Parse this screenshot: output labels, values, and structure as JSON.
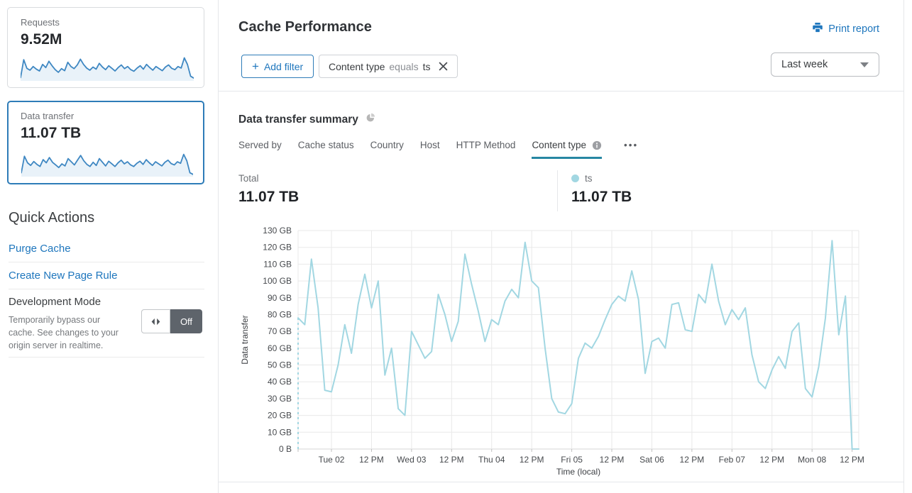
{
  "sidebar": {
    "requests_card": {
      "label": "Requests",
      "value": "9.52M",
      "sparkline": [
        10,
        78,
        45,
        38,
        52,
        42,
        35,
        60,
        48,
        72,
        55,
        40,
        30,
        44,
        36,
        68,
        52,
        44,
        58,
        80,
        60,
        46,
        38,
        50,
        42,
        64,
        50,
        40,
        55,
        45,
        35,
        48,
        58,
        44,
        52,
        40,
        34,
        46,
        55,
        42,
        60,
        48,
        38,
        52,
        44,
        36,
        50,
        58,
        45,
        40,
        52,
        46,
        85,
        60,
        15,
        8
      ]
    },
    "data_transfer_card": {
      "label": "Data transfer",
      "value": "11.07 TB",
      "sparkline": [
        12,
        75,
        50,
        40,
        55,
        44,
        36,
        62,
        50,
        70,
        52,
        42,
        32,
        46,
        38,
        66,
        54,
        42,
        60,
        78,
        58,
        44,
        36,
        52,
        40,
        66,
        52,
        38,
        56,
        46,
        36,
        50,
        60,
        46,
        54,
        42,
        36,
        48,
        56,
        44,
        62,
        50,
        40,
        54,
        46,
        38,
        52,
        60,
        47,
        42,
        54,
        48,
        82,
        58,
        12,
        6
      ]
    },
    "quick_actions": {
      "title": "Quick Actions",
      "links": [
        "Purge Cache",
        "Create New Page Rule"
      ],
      "dev_mode": {
        "label": "Development Mode",
        "description": "Temporarily bypass our cache. See changes to your origin server in realtime.",
        "toggle_state": "Off"
      }
    }
  },
  "header": {
    "title": "Cache Performance",
    "print_label": "Print report",
    "add_filter_plus": "+",
    "add_filter_label": "Add filter",
    "filter_chip": {
      "field": "Content type",
      "operator": "equals",
      "value": "ts"
    },
    "time_range": "Last week"
  },
  "summary": {
    "title": "Data transfer summary",
    "tabs": [
      {
        "label": "Served by"
      },
      {
        "label": "Cache status"
      },
      {
        "label": "Country"
      },
      {
        "label": "Host"
      },
      {
        "label": "HTTP Method"
      },
      {
        "label": "Content type",
        "active": true,
        "has_info": true
      }
    ],
    "more_label": "•••",
    "total_label": "Total",
    "total_value": "11.07 TB",
    "legend": {
      "name": "ts",
      "value": "11.07 TB",
      "color": "#a2d7e2"
    }
  },
  "colors": {
    "accent_blue": "#1e76bd",
    "selected_card_border": "#2e7cb8",
    "tab_underline": "#2787a3",
    "series_light_blue": "#a2d7e2",
    "sparkline_blue": "#3e87c2",
    "sparkline_fill": "#e9f2f9",
    "toggle_dark": "#5e646b",
    "gridline": "#e9e9e9"
  },
  "chart_data": {
    "type": "line",
    "title": "Data transfer summary",
    "xlabel": "Time (local)",
    "ylabel": "Data transfer",
    "unit": "GB",
    "ylim": [
      0,
      130
    ],
    "grid": true,
    "legend_position": "top-right",
    "dashed_lead_in": true,
    "y_ticks": [
      "0 B",
      "10 GB",
      "20 GB",
      "30 GB",
      "40 GB",
      "50 GB",
      "60 GB",
      "70 GB",
      "80 GB",
      "90 GB",
      "100 GB",
      "110 GB",
      "120 GB",
      "130 GB"
    ],
    "x_ticks": {
      "labels": [
        "Tue 02",
        "12 PM",
        "Wed 03",
        "12 PM",
        "Thu 04",
        "12 PM",
        "Fri 05",
        "12 PM",
        "Sat 06",
        "12 PM",
        "Feb 07",
        "12 PM",
        "Mon 08",
        "12 PM"
      ],
      "point_indices": [
        5,
        11,
        17,
        23,
        29,
        35,
        41,
        47,
        53,
        59,
        65,
        71,
        77,
        83
      ]
    },
    "series": [
      {
        "name": "ts",
        "color": "#a2d7e2",
        "total": "11.07 TB",
        "values_gb": [
          78,
          74,
          113,
          84,
          35,
          34,
          50,
          74,
          57,
          86,
          104,
          84,
          100,
          44,
          60,
          24,
          20,
          70,
          62,
          54,
          58,
          92,
          80,
          64,
          76,
          116,
          98,
          82,
          64,
          77,
          74,
          88,
          95,
          90,
          123,
          100,
          96,
          60,
          30,
          22,
          21,
          27,
          54,
          63,
          60,
          67,
          77,
          86,
          91,
          88,
          106,
          89,
          45,
          64,
          66,
          60,
          86,
          87,
          71,
          70,
          92,
          87,
          110,
          88,
          74,
          83,
          77,
          84,
          56,
          40,
          36,
          47,
          55,
          48,
          70,
          75,
          36,
          31,
          49,
          78,
          124,
          68,
          91,
          0,
          0
        ]
      }
    ]
  }
}
